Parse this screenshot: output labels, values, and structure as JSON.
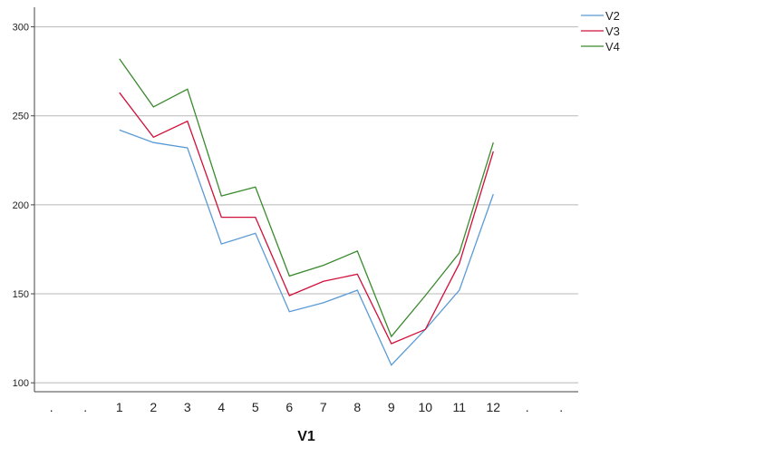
{
  "chart_data": {
    "type": "line",
    "xlabel": "V1",
    "ylabel": "",
    "categories": [
      ".",
      ".",
      "1",
      "2",
      "3",
      "4",
      "5",
      "6",
      "7",
      "8",
      "9",
      "10",
      "11",
      "12",
      ".",
      "."
    ],
    "yticks": [
      100,
      150,
      200,
      250,
      300
    ],
    "ylim": [
      95,
      311
    ],
    "grid": true,
    "legend_position": "top-right",
    "series": [
      {
        "name": "V2",
        "color": "#5b9bd5",
        "values": [
          null,
          null,
          242,
          235,
          232,
          178,
          184,
          140,
          145,
          152,
          110,
          130,
          152,
          206,
          null,
          null
        ]
      },
      {
        "name": "V3",
        "color": "#d0103a",
        "values": [
          null,
          null,
          263,
          238,
          247,
          193,
          193,
          149,
          157,
          161,
          122,
          130,
          167,
          230,
          null,
          null
        ]
      },
      {
        "name": "V4",
        "color": "#3a8a2e",
        "values": [
          null,
          null,
          282,
          255,
          265,
          205,
          210,
          160,
          166,
          174,
          126,
          149,
          173,
          235,
          null,
          null
        ]
      }
    ]
  }
}
